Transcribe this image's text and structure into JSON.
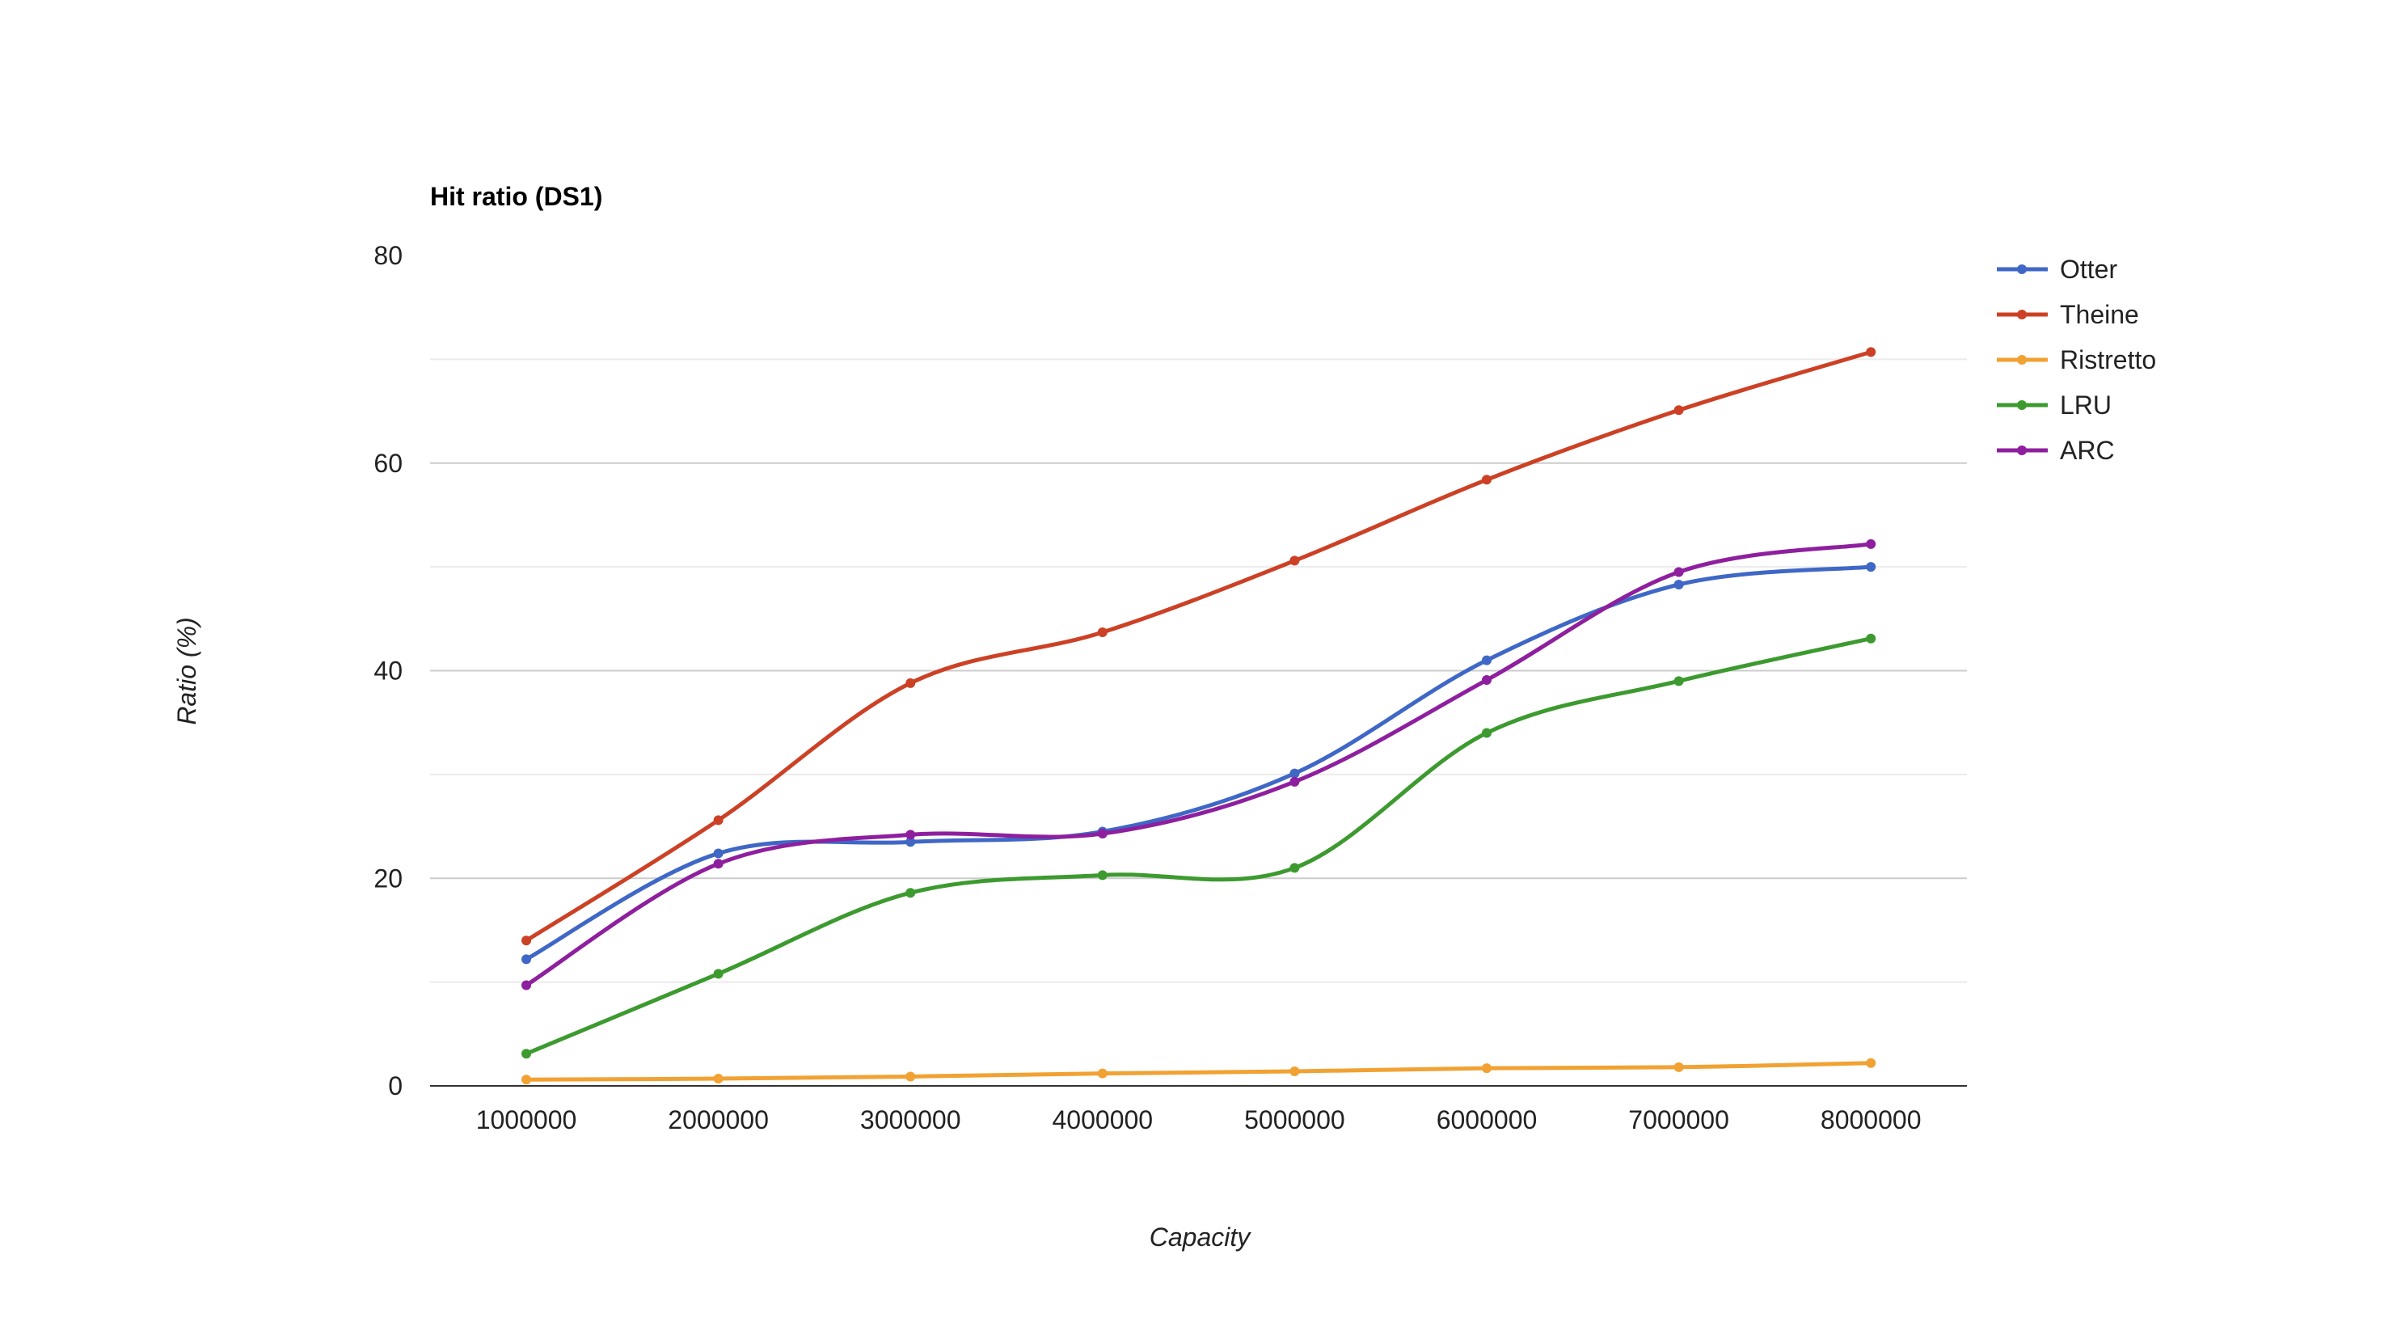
{
  "chart_data": {
    "type": "line",
    "title": "Hit ratio (DS1)",
    "xlabel": "Capacity",
    "ylabel": "Ratio (%)",
    "x": [
      "1000000",
      "2000000",
      "3000000",
      "4000000",
      "5000000",
      "6000000",
      "7000000",
      "8000000"
    ],
    "ylim": [
      0,
      80
    ],
    "yticks": [
      0,
      20,
      40,
      60,
      80
    ],
    "grid": true,
    "legend_position": "right",
    "series": [
      {
        "name": "Otter",
        "color": "#3f67c6",
        "values": [
          12.2,
          22.4,
          23.5,
          24.5,
          30.1,
          41.0,
          48.3,
          50.0
        ]
      },
      {
        "name": "Theine",
        "color": "#cc4125",
        "values": [
          14.0,
          25.6,
          38.8,
          43.7,
          50.6,
          58.4,
          65.1,
          70.7
        ]
      },
      {
        "name": "Ristretto",
        "color": "#f1a232",
        "values": [
          0.6,
          0.7,
          0.9,
          1.2,
          1.4,
          1.7,
          1.8,
          2.2
        ]
      },
      {
        "name": "LRU",
        "color": "#3c9a2f",
        "values": [
          3.1,
          10.8,
          18.6,
          20.3,
          21.0,
          34.0,
          39.0,
          43.1
        ]
      },
      {
        "name": "ARC",
        "color": "#8e1f9e",
        "values": [
          9.7,
          21.4,
          24.2,
          24.3,
          29.3,
          39.1,
          49.5,
          52.2
        ]
      }
    ]
  }
}
